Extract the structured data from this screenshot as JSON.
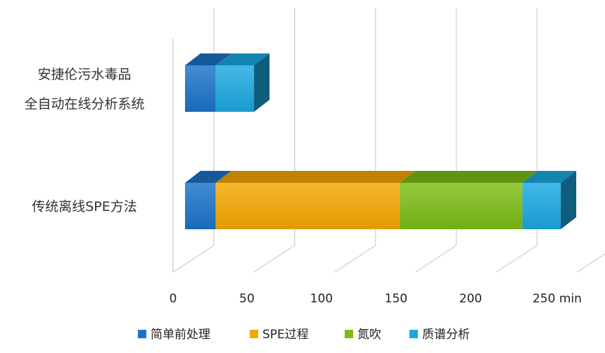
{
  "chart_data": {
    "type": "bar",
    "orientation": "horizontal",
    "stacked": true,
    "three_d": true,
    "categories": [
      [
        "安捷伦污水毒品",
        "全自动在线分析系统"
      ],
      [
        "传统离线SPE方法"
      ]
    ],
    "series": [
      {
        "name": "简单前处理",
        "color": "#1a73c9",
        "values": [
          20,
          20
        ]
      },
      {
        "name": "SPE过程",
        "color": "#f5a800",
        "values": [
          0,
          120
        ]
      },
      {
        "name": "氮吹",
        "color": "#7cbd14",
        "values": [
          0,
          80
        ]
      },
      {
        "name": "质谱分析",
        "color": "#1aa9e2",
        "values": [
          25,
          25
        ]
      }
    ],
    "xlim": [
      0,
      250
    ],
    "x_ticks": [
      "0",
      "50",
      "100",
      "150",
      "200",
      "250 min"
    ],
    "grid": true,
    "legend_position": "bottom"
  }
}
